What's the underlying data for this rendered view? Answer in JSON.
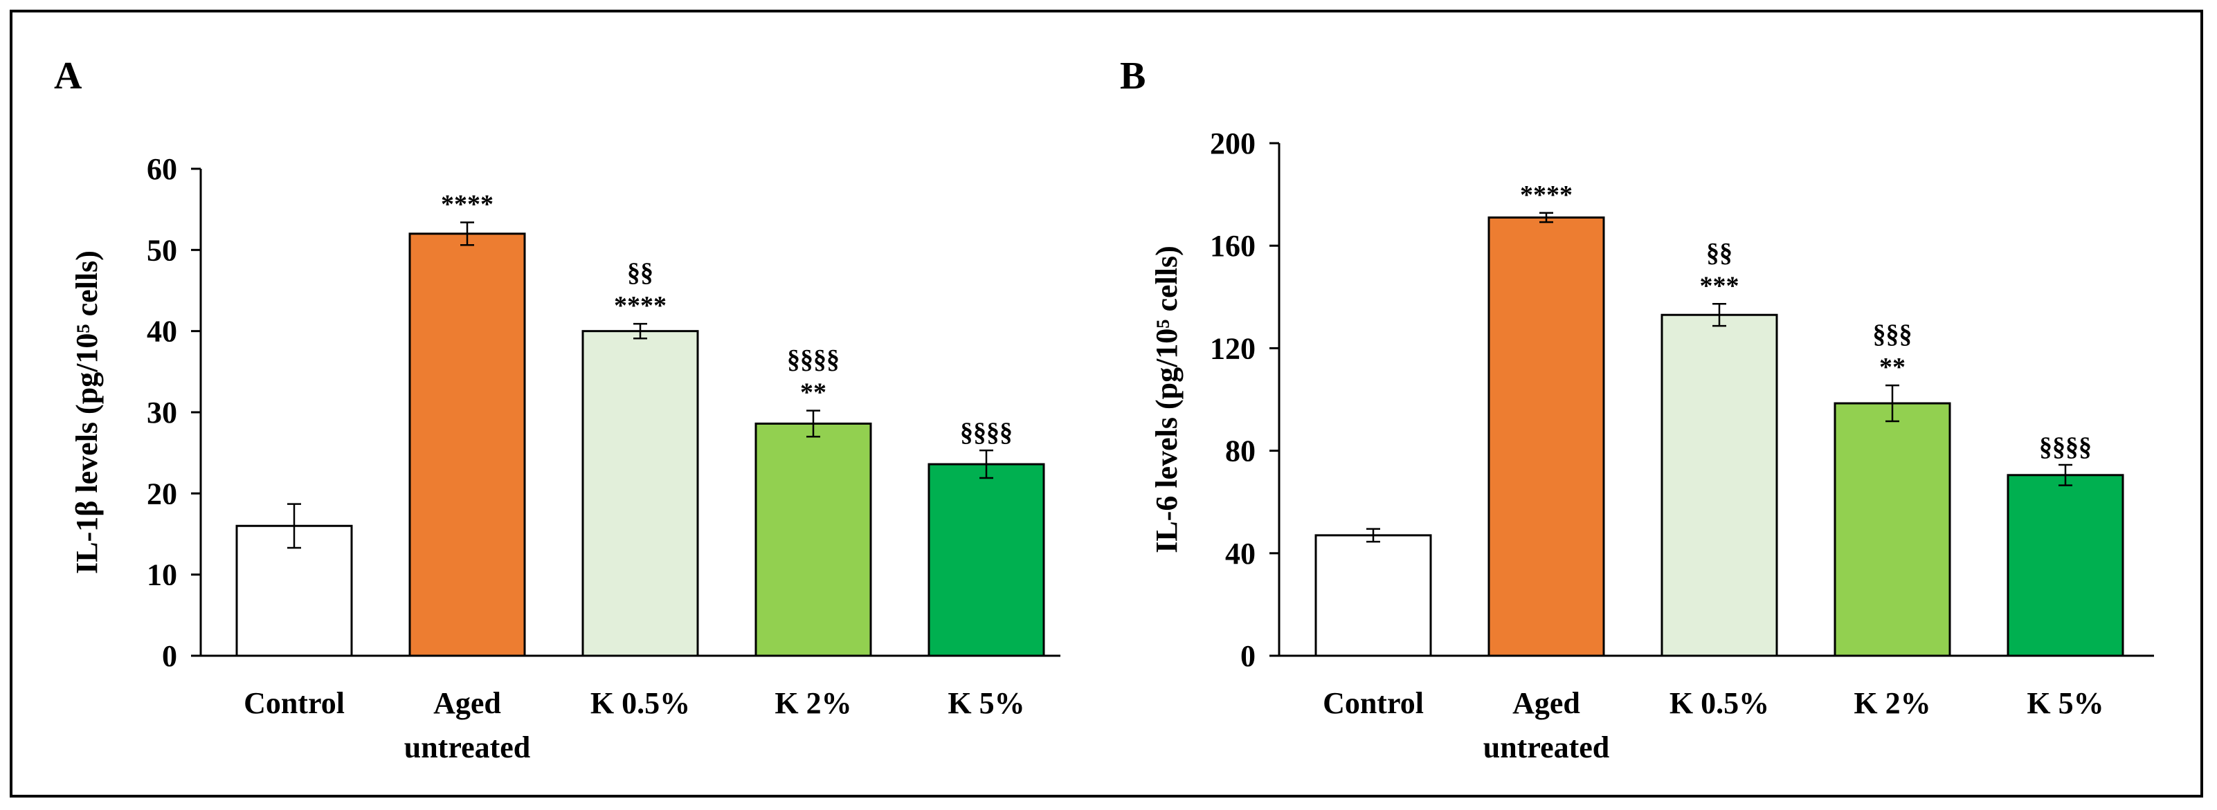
{
  "chart_data": [
    {
      "type": "bar",
      "panel": "A",
      "title": "",
      "xlabel": "",
      "ylabel": "IL-1β levels (pg/10⁵ cells)",
      "ylim": [
        0,
        60
      ],
      "yticks": [
        0,
        10,
        20,
        30,
        40,
        50,
        60
      ],
      "ytick_labels": [
        "0",
        "10",
        "20",
        "30",
        "40",
        "50",
        "60"
      ],
      "categories": [
        [
          "Control"
        ],
        [
          "Aged",
          "untreated"
        ],
        [
          "K 0.5%"
        ],
        [
          "K 2%"
        ],
        [
          "K 5%"
        ]
      ],
      "values": [
        16,
        52,
        40,
        28.6,
        23.6
      ],
      "errors": [
        2.7,
        1.4,
        0.9,
        1.6,
        1.7
      ],
      "colors": [
        "#ffffff",
        "#ed7d31",
        "#e2efda",
        "#92d050",
        "#00b050"
      ],
      "annotations": [
        [],
        [
          "****"
        ],
        [
          "§§",
          "****"
        ],
        [
          "§§§§",
          "**"
        ],
        [
          "§§§§"
        ]
      ]
    },
    {
      "type": "bar",
      "panel": "B",
      "title": "",
      "xlabel": "",
      "ylabel": "IL-6 levels (pg/10⁵ cells)",
      "ylim": [
        0,
        200
      ],
      "yticks": [
        0,
        40,
        80,
        120,
        160,
        200
      ],
      "ytick_labels": [
        "0",
        "40",
        "80",
        "120",
        "160",
        "200"
      ],
      "categories": [
        [
          "Control"
        ],
        [
          "Aged",
          "untreated"
        ],
        [
          "K 0.5%"
        ],
        [
          "K 2%"
        ],
        [
          "K 5%"
        ]
      ],
      "values": [
        47,
        171,
        133,
        98.5,
        70.5
      ],
      "errors": [
        2.5,
        1.8,
        4.3,
        7,
        4
      ],
      "colors": [
        "#ffffff",
        "#ed7d31",
        "#e2efda",
        "#92d050",
        "#00b050"
      ],
      "annotations": [
        [],
        [
          "****"
        ],
        [
          "§§",
          "***"
        ],
        [
          "§§§",
          "**"
        ],
        [
          "§§§§"
        ]
      ]
    }
  ]
}
